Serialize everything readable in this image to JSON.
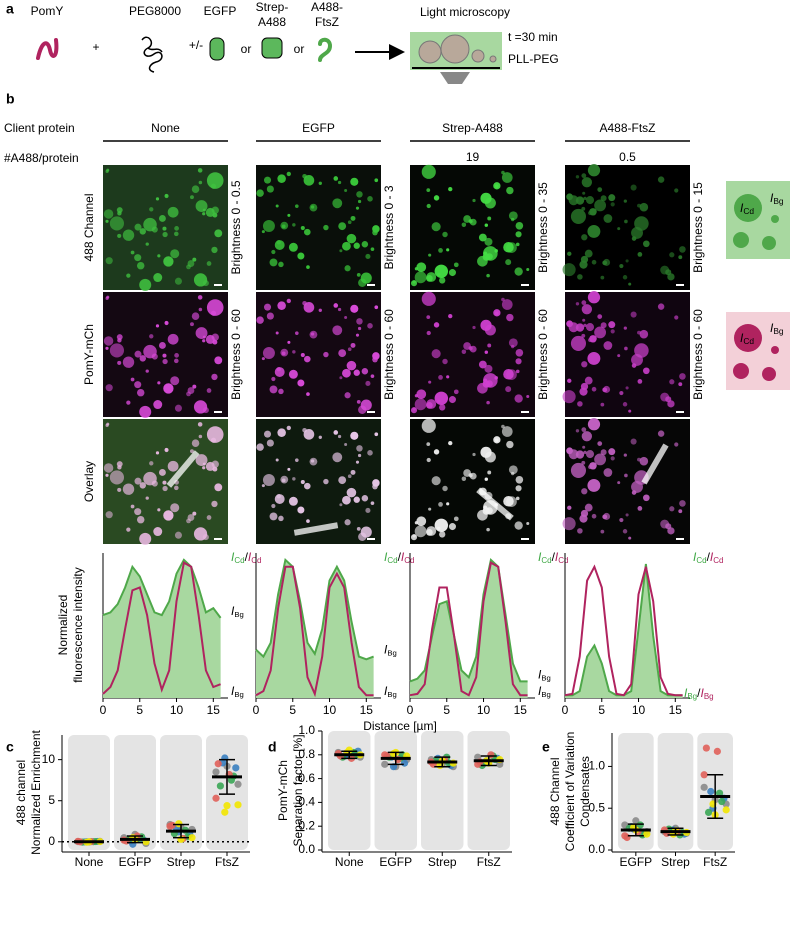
{
  "panel_a": {
    "label": "a",
    "pomy": "PomY",
    "plus": "+",
    "peg": "PEG8000",
    "plusminus": "+/-",
    "egfp": "EGFP",
    "or": "or",
    "strep": [
      "Strep-",
      "A488"
    ],
    "ftsz": [
      "A488-",
      "FtsZ"
    ],
    "microscopy": "Light microscopy",
    "time": "t =30 min",
    "surface": "PLL-PEG"
  },
  "panel_b": {
    "label": "b",
    "client_protein": "Client protein",
    "a488_per_protein": "#A488/protein",
    "columns": [
      {
        "name": "None"
      },
      {
        "name": "EGFP"
      },
      {
        "name": "Strep-A488",
        "a488": 19
      },
      {
        "name": "A488-FtsZ",
        "a488": 0.5
      }
    ],
    "rows": [
      "488 Channel",
      "PomY-mCh",
      "Overlay"
    ],
    "brightness": [
      [
        "Brightness 0 - 0.5",
        "Brightness 0 - 3",
        "Brightness 0 - 35",
        "Brightness 0 - 15"
      ],
      [
        "Brightness 0 - 60",
        "Brightness 0 - 60",
        "Brightness 0 - 60",
        "Brightness 0 - 60"
      ]
    ],
    "schematic": {
      "I": "I",
      "cd": "Cd",
      "bg": "Bg"
    },
    "ylabel": [
      "Normalized",
      "fluorescence intensity"
    ],
    "xlabel": "Distance [µm]",
    "annotation": {
      "I": "I",
      "cd": "Cd",
      "bg": "Bg",
      "slash": "/"
    }
  },
  "chart_data": [
    {
      "type": "line",
      "x": [
        0,
        1,
        2,
        3,
        4,
        5,
        6,
        7,
        8,
        9,
        10,
        11,
        12,
        13,
        14,
        15,
        16
      ],
      "xlim": [
        0,
        17
      ],
      "xticks": [
        0,
        5,
        10,
        15
      ],
      "ylim": [
        0,
        1.05
      ],
      "bg_combined": false,
      "series": [
        {
          "color": "#4fa84a",
          "fill": "#a8d8a0",
          "values": [
            0.6,
            0.62,
            0.68,
            0.8,
            0.95,
            0.88,
            0.75,
            0.62,
            0.6,
            0.7,
            0.9,
            1.0,
            0.95,
            0.8,
            0.62,
            0.65,
            0.58
          ]
        },
        {
          "color": "#b0235f",
          "values": [
            0.03,
            0.08,
            0.2,
            0.5,
            0.78,
            0.8,
            0.6,
            0.25,
            0.06,
            0.2,
            0.7,
            0.98,
            0.95,
            0.6,
            0.2,
            0.08,
            0.1
          ]
        }
      ]
    },
    {
      "type": "line",
      "x": [
        0,
        1,
        2,
        3,
        4,
        5,
        6,
        7,
        8,
        9,
        10,
        11,
        12,
        13,
        14,
        15,
        16
      ],
      "xlim": [
        0,
        17
      ],
      "xticks": [
        0,
        5,
        10,
        15
      ],
      "ylim": [
        0,
        1.05
      ],
      "bg_combined": false,
      "series": [
        {
          "color": "#4fa84a",
          "fill": "#a8d8a0",
          "values": [
            0.35,
            0.3,
            0.4,
            0.75,
            1.0,
            0.95,
            0.7,
            0.4,
            0.32,
            0.5,
            0.85,
            0.95,
            0.85,
            0.55,
            0.3,
            0.28,
            0.3
          ]
        },
        {
          "color": "#b0235f",
          "values": [
            0.02,
            0.05,
            0.2,
            0.65,
            0.95,
            0.95,
            0.65,
            0.15,
            0.03,
            0.3,
            0.8,
            0.9,
            0.8,
            0.4,
            0.08,
            0.02,
            0.02
          ]
        }
      ]
    },
    {
      "type": "line",
      "x": [
        0,
        1,
        2,
        3,
        4,
        5,
        6,
        7,
        8,
        9,
        10,
        11,
        12,
        13,
        14,
        15,
        16
      ],
      "xlim": [
        0,
        17
      ],
      "xticks": [
        0,
        5,
        10,
        15
      ],
      "ylim": [
        0,
        1.05
      ],
      "bg_combined": false,
      "series": [
        {
          "color": "#4fa84a",
          "fill": "#a8d8a0",
          "values": [
            0.12,
            0.14,
            0.2,
            0.45,
            0.68,
            0.7,
            0.45,
            0.2,
            0.15,
            0.3,
            0.75,
            1.0,
            0.95,
            0.6,
            0.25,
            0.12,
            0.12
          ]
        },
        {
          "color": "#b0235f",
          "values": [
            0.02,
            0.03,
            0.1,
            0.5,
            0.8,
            0.8,
            0.45,
            0.05,
            0.02,
            0.15,
            0.7,
            0.98,
            0.95,
            0.55,
            0.1,
            0.02,
            0.02
          ]
        }
      ]
    },
    {
      "type": "line",
      "x": [
        0,
        1,
        2,
        3,
        4,
        5,
        6,
        7,
        8,
        9,
        10,
        11,
        12,
        13,
        14,
        15,
        16
      ],
      "xlim": [
        0,
        17
      ],
      "xticks": [
        0,
        5,
        10,
        15
      ],
      "ylim": [
        0,
        1.05
      ],
      "bg_combined": true,
      "series": [
        {
          "color": "#4fa84a",
          "fill": "#a8d8a0",
          "values": [
            0.02,
            0.02,
            0.05,
            0.3,
            0.38,
            0.25,
            0.05,
            0.02,
            0.02,
            0.05,
            0.5,
            0.97,
            0.45,
            0.05,
            0.02,
            0.02,
            0.02
          ]
        },
        {
          "color": "#b0235f",
          "values": [
            0.02,
            0.03,
            0.3,
            0.85,
            0.95,
            0.8,
            0.3,
            0.03,
            0.02,
            0.1,
            0.75,
            0.95,
            0.7,
            0.15,
            0.03,
            0.02,
            0.02
          ]
        }
      ]
    },
    {
      "type": "strip",
      "panel": "c",
      "categories": [
        "None",
        "EGFP",
        "Strep",
        "FtsZ"
      ],
      "category_colors": [
        "#000000",
        "#000000",
        "#000000",
        "#3fa845"
      ],
      "ylabel": [
        {
          "text": "488 channel",
          "color": "#3fa845"
        },
        {
          "text": "Normalized Enrichment",
          "color": "#000000"
        }
      ],
      "ylim": [
        -1,
        13
      ],
      "yticks": [
        0,
        5,
        10
      ],
      "hline": 0,
      "values": [
        0.01,
        0.3,
        1.3,
        7.9
      ],
      "errors": [
        0.05,
        0.4,
        0.8,
        2.1
      ],
      "replicate_colors": [
        "#8a8a8a",
        "#3a7fc0",
        "#3aa655",
        "#e0605a",
        "#f2e600"
      ],
      "points": [
        [
          [
            0.02,
            -0.03,
            0.05
          ],
          [
            0,
            0.04,
            -0.02
          ],
          [
            0.03,
            -0.04,
            0.01
          ],
          [
            -0.01,
            0.02,
            0.06
          ],
          [
            0,
            0.03,
            -0.05
          ]
        ],
        [
          [
            0.5,
            0.9,
            -0.2
          ],
          [
            -0.3,
            0.2,
            0.1
          ],
          [
            0.6,
            0.3,
            0.4
          ],
          [
            0.1,
            0.7,
            0.2
          ],
          [
            0.3,
            0,
            0.5
          ]
        ],
        [
          [
            2.1,
            1.8,
            1.5
          ],
          [
            1.2,
            0.9,
            1.6
          ],
          [
            0.6,
            1.0,
            1.4
          ],
          [
            2.0,
            0.4,
            1.9
          ],
          [
            0.3,
            0.5,
            2.2
          ]
        ],
        [
          [
            8.5,
            9.2,
            7.0
          ],
          [
            10.2,
            9.0,
            9.6
          ],
          [
            8.0,
            6.8,
            7.5
          ],
          [
            9.5,
            8.2,
            5.3
          ],
          [
            4.4,
            4.5,
            3.6
          ]
        ]
      ]
    },
    {
      "type": "strip",
      "panel": "d",
      "categories": [
        "None",
        "EGFP",
        "Strep",
        "FtsZ"
      ],
      "category_colors": [
        "#000000",
        "#000000",
        "#000000",
        "#3fa845"
      ],
      "ylabel": [
        {
          "text": "PomY-mCh",
          "color": "#b0235f"
        },
        {
          "text": "Separation factor [%]",
          "color": "#000000"
        }
      ],
      "ylim": [
        0,
        1
      ],
      "yticks": [
        {
          "value": 0,
          "label": "0.0"
        },
        0.2,
        0.4,
        0.6,
        0.8,
        {
          "value": 1,
          "label": "1.0"
        }
      ],
      "values": [
        0.8,
        0.77,
        0.74,
        0.75
      ],
      "errors": [
        0.03,
        0.05,
        0.04,
        0.04
      ],
      "replicate_colors": [
        "#8a8a8a",
        "#3a7fc0",
        "#3aa655",
        "#e0605a",
        "#f2e600"
      ],
      "points": [
        [
          [
            0.82,
            0.8,
            0.78
          ],
          [
            0.81,
            0.83,
            0.79
          ],
          [
            0.8,
            0.78,
            0.82
          ],
          [
            0.79,
            0.77,
            0.81
          ],
          [
            0.84,
            0.8,
            0.82
          ]
        ],
        [
          [
            0.72,
            0.7,
            0.76
          ],
          [
            0.7,
            0.73,
            0.78
          ],
          [
            0.8,
            0.78,
            0.77
          ],
          [
            0.79,
            0.76,
            0.8
          ],
          [
            0.82,
            0.79,
            0.81
          ]
        ],
        [
          [
            0.76,
            0.72,
            0.7
          ],
          [
            0.74,
            0.71,
            0.77
          ],
          [
            0.73,
            0.75,
            0.78
          ],
          [
            0.72,
            0.76,
            0.74
          ],
          [
            0.75,
            0.73,
            0.71
          ]
        ],
        [
          [
            0.78,
            0.74,
            0.72
          ],
          [
            0.75,
            0.77,
            0.73
          ],
          [
            0.76,
            0.71,
            0.79
          ],
          [
            0.74,
            0.8,
            0.72
          ],
          [
            0.73,
            0.76,
            0.75
          ]
        ]
      ]
    },
    {
      "type": "strip",
      "panel": "e",
      "categories": [
        "EGFP",
        "Strep",
        "FtsZ"
      ],
      "category_colors": [
        "#000000",
        "#000000",
        "#3fa845"
      ],
      "ylabel": [
        {
          "text": "488 Channel",
          "color": "#3fa845"
        },
        {
          "text": "Coefficient of Variation",
          "color": "#000000"
        },
        {
          "text": "Condensates",
          "color": "#000000"
        }
      ],
      "ylim": [
        0,
        1.4
      ],
      "yticks": [
        {
          "value": 0,
          "label": "0.0"
        },
        0.5,
        {
          "value": 1,
          "label": "1.0"
        }
      ],
      "values": [
        0.24,
        0.22,
        0.64
      ],
      "errors": [
        0.07,
        0.04,
        0.26
      ],
      "replicate_colors": [
        "#8a8a8a",
        "#3a7fc0",
        "#3aa655",
        "#e0605a",
        "#f2e600"
      ],
      "points": [
        [
          [
            0.3,
            0.35,
            0.22
          ],
          [
            0.25,
            0.2,
            0.28
          ],
          [
            0.18,
            0.26,
            0.3
          ],
          [
            0.15,
            0.22,
            0.17
          ],
          [
            0.24,
            0.19,
            0.27
          ]
        ],
        [
          [
            0.22,
            0.26,
            0.2
          ],
          [
            0.24,
            0.19,
            0.23
          ],
          [
            0.21,
            0.25,
            0.18
          ],
          [
            0.2,
            0.22,
            0.24
          ],
          [
            0.23,
            0.21,
            0.19
          ]
        ],
        [
          [
            0.75,
            0.6,
            0.55
          ],
          [
            0.5,
            0.62,
            0.7
          ],
          [
            0.58,
            0.45,
            0.68
          ],
          [
            1.22,
            1.18,
            0.9
          ],
          [
            0.42,
            0.48,
            0.55
          ]
        ]
      ]
    }
  ]
}
